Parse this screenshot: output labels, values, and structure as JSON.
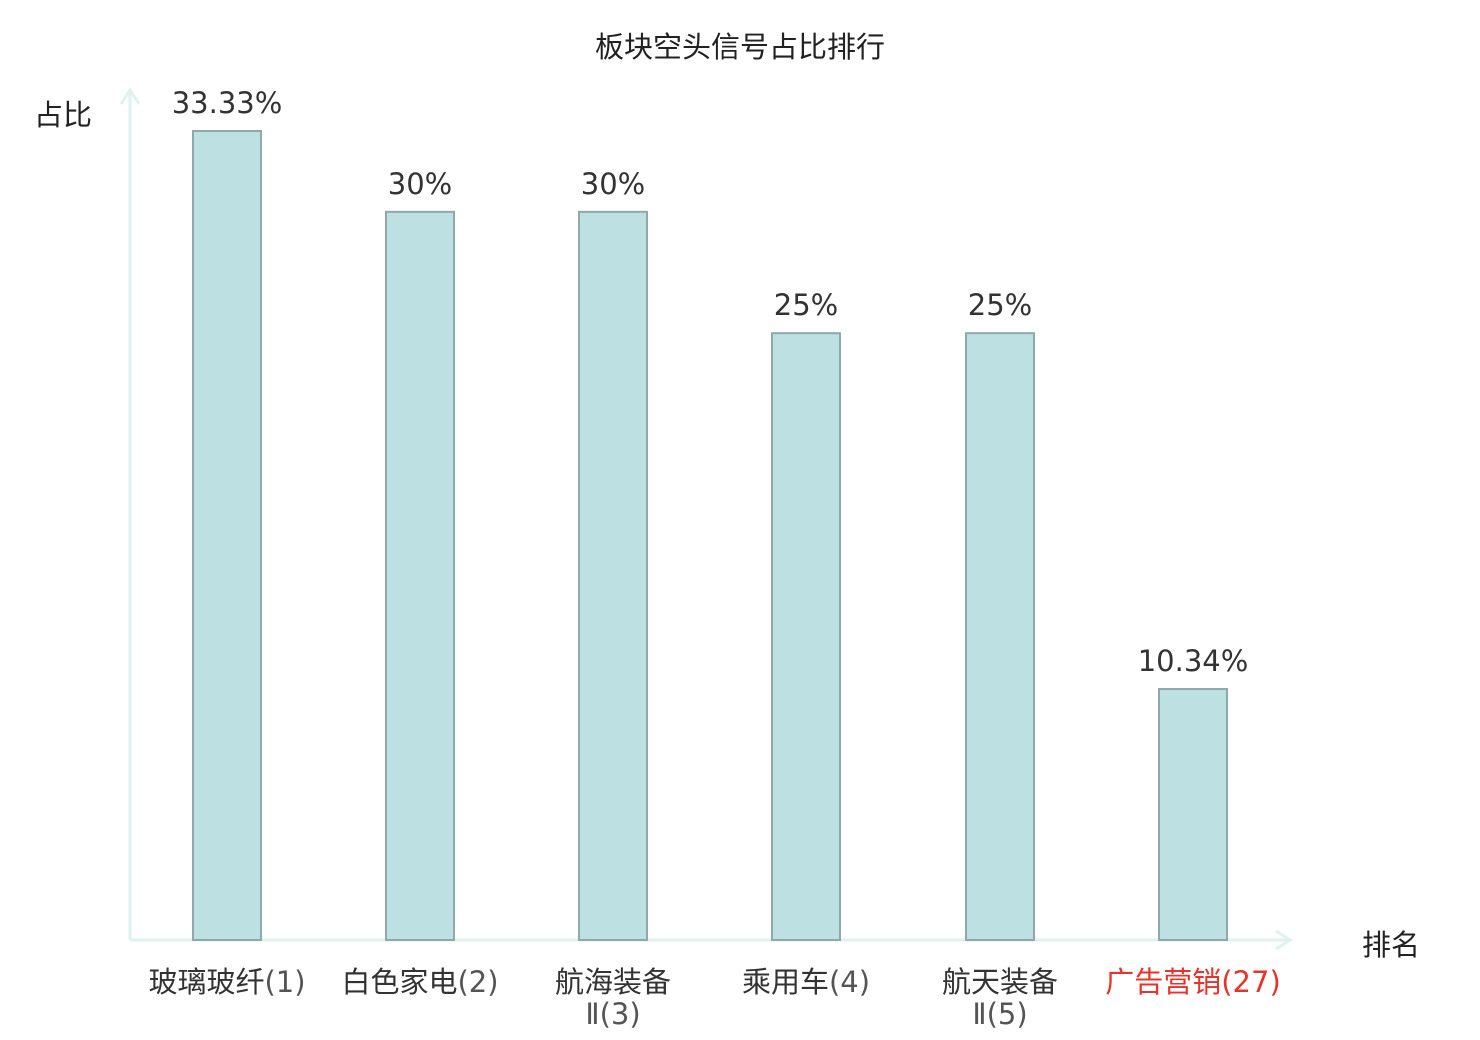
{
  "chart_data": {
    "type": "bar",
    "title": "板块空头信号占比排行",
    "ylabel": "占比",
    "xlabel": "排名",
    "categories": [
      {
        "name": "玻璃玻纤",
        "rank": "(1)"
      },
      {
        "name": "白色家电",
        "rank": "(2)"
      },
      {
        "name": "航海装备",
        "rank": "Ⅱ(3)"
      },
      {
        "name": "乘用车",
        "rank": "(4)"
      },
      {
        "name": "航天装备",
        "rank": "Ⅱ(5)"
      },
      {
        "name": "广告营销",
        "rank": "(27)"
      }
    ],
    "values": [
      33.33,
      30,
      30,
      25,
      25,
      10.34
    ],
    "data_labels": [
      "33.33%",
      "30%",
      "30%",
      "25%",
      "25%",
      "10.34%"
    ],
    "highlight_index": 5,
    "highlight_color": "#e8322a",
    "bar_color": "#bde0e2",
    "bar_border_color": "#8fa9ab",
    "axis_color": "#dff2ef",
    "ylim": [
      0,
      33.33
    ],
    "grid": false,
    "legend": "none"
  }
}
